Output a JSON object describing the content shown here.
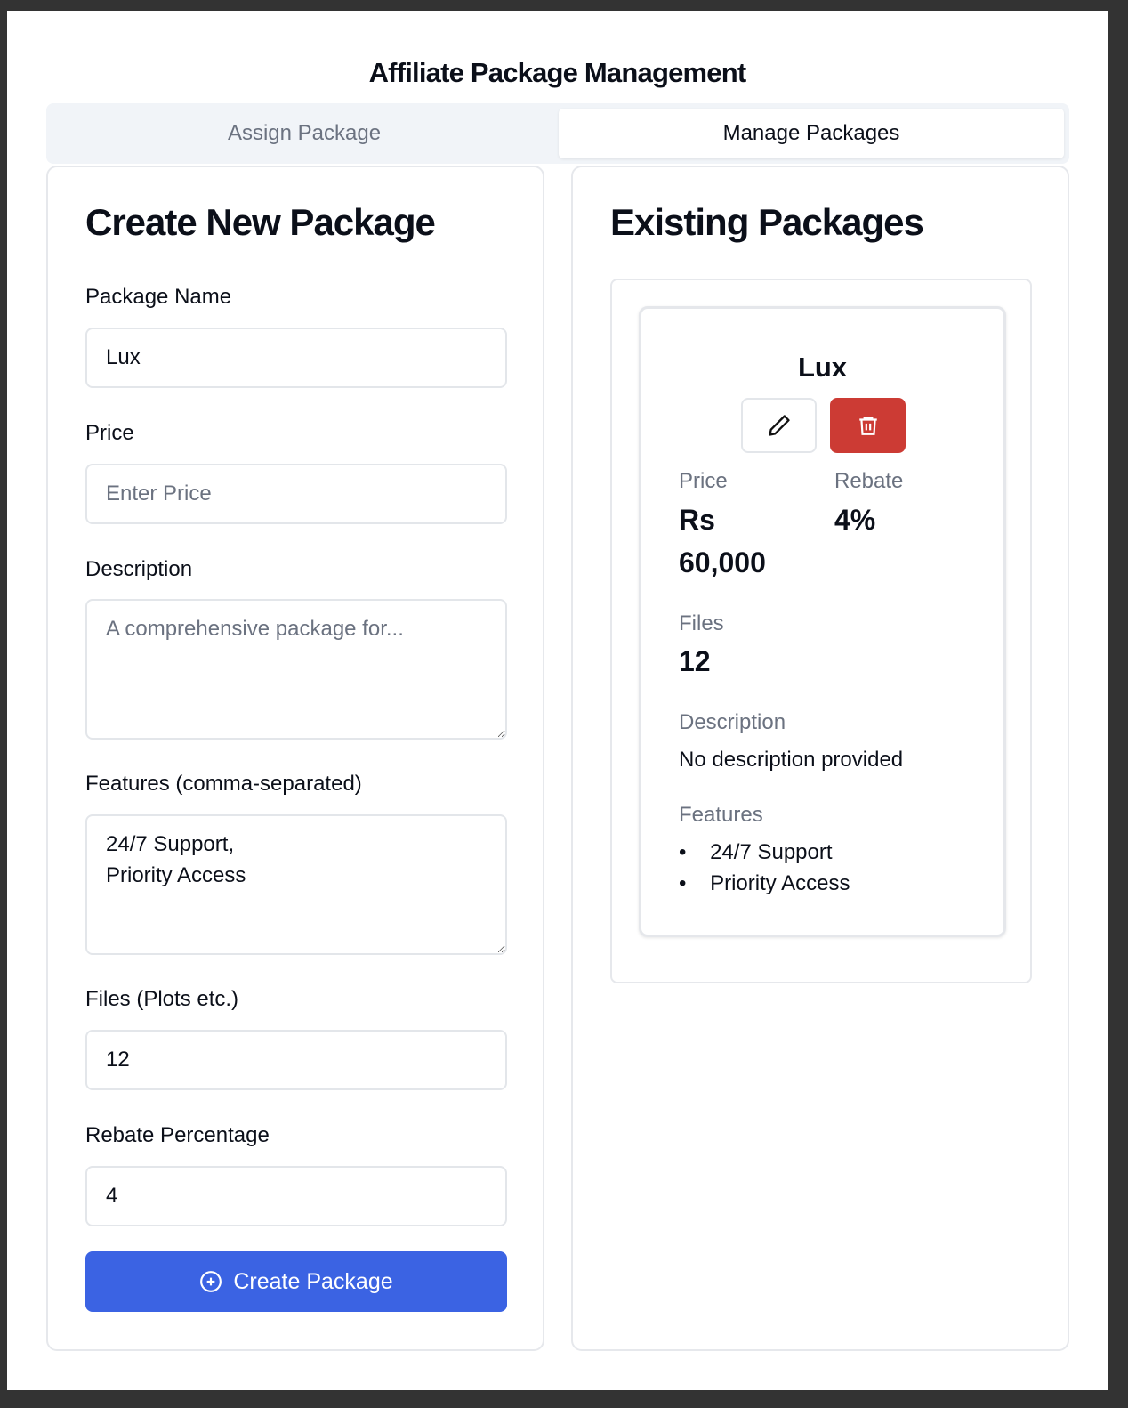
{
  "title": "Affiliate Package Management",
  "tabs": [
    {
      "label": "Assign Package",
      "active": false
    },
    {
      "label": "Manage Packages",
      "active": true
    }
  ],
  "create": {
    "heading": "Create New Package",
    "fields": {
      "name": {
        "label": "Package Name",
        "value": "Lux",
        "placeholder": ""
      },
      "price": {
        "label": "Price",
        "value": "",
        "placeholder": "Enter Price"
      },
      "description": {
        "label": "Description",
        "value": "",
        "placeholder": "A comprehensive package for..."
      },
      "features": {
        "label": "Features (comma-separated)",
        "value": "24/7 Support,\nPriority Access"
      },
      "files": {
        "label": "Files (Plots etc.)",
        "value": "12"
      },
      "rebate": {
        "label": "Rebate Percentage",
        "value": "4"
      }
    },
    "submit_label": "Create Package",
    "accent": "#3b63e3"
  },
  "existing": {
    "heading": "Existing Packages",
    "packages": [
      {
        "name": "Lux",
        "price_label": "Price",
        "price_currency": "Rs",
        "price_value": "60,000",
        "rebate_label": "Rebate",
        "rebate": "4%",
        "files_label": "Files",
        "files": "12",
        "description_label": "Description",
        "description": "No description provided",
        "features_label": "Features",
        "features": [
          "24/7 Support",
          "Priority Access"
        ],
        "delete_color": "#cc3b34"
      }
    ]
  }
}
